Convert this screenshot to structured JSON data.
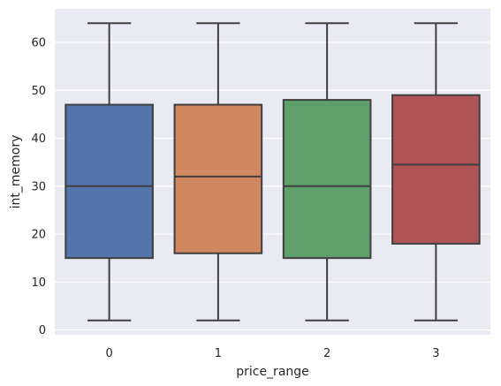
{
  "chart_data": {
    "type": "box",
    "xlabel": "price_range",
    "ylabel": "int_memory",
    "ylim": [
      -1,
      67
    ],
    "yticks": [
      0,
      10,
      20,
      30,
      40,
      50,
      60
    ],
    "grid": true,
    "background": "#EAEAF2",
    "grid_color": "#FFFFFF",
    "line_color": "#3F3F3F",
    "categories": [
      "0",
      "1",
      "2",
      "3"
    ],
    "boxes": [
      {
        "category": "0",
        "min": 2,
        "q1": 15,
        "median": 30,
        "q3": 47,
        "max": 64,
        "color": "#5375AB"
      },
      {
        "category": "1",
        "min": 2,
        "q1": 16,
        "median": 32,
        "q3": 47,
        "max": 64,
        "color": "#D1875F"
      },
      {
        "category": "2",
        "min": 2,
        "q1": 15,
        "median": 30,
        "q3": 48,
        "max": 64,
        "color": "#5E9F6C"
      },
      {
        "category": "3",
        "min": 2,
        "q1": 18,
        "median": 34.5,
        "q3": 49,
        "max": 64,
        "color": "#B05357"
      }
    ]
  }
}
